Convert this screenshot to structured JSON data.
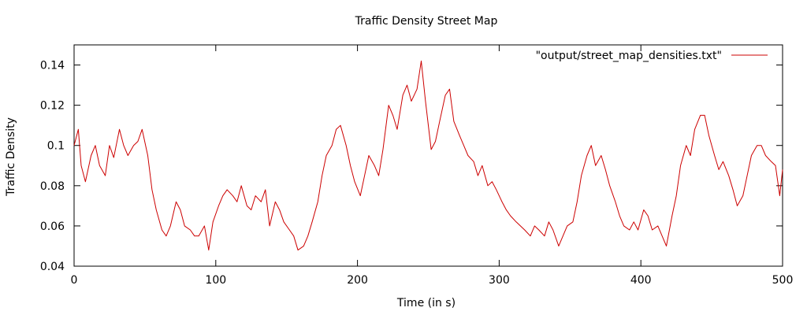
{
  "chart_data": {
    "type": "line",
    "title": "Traffic Density Street Map",
    "xlabel": "Time (in s)",
    "ylabel": "Traffic Density",
    "xlim": [
      0,
      500
    ],
    "ylim": [
      0.04,
      0.15
    ],
    "x_ticks": [
      0,
      100,
      200,
      300,
      400,
      500
    ],
    "y_ticks": [
      0.04,
      0.06,
      0.08,
      0.1,
      0.12,
      0.14
    ],
    "x_tick_labels": [
      "0",
      "100",
      "200",
      "300",
      "400",
      "500"
    ],
    "y_tick_labels": [
      "0.04",
      "0.06",
      "0.08",
      "0.1",
      "0.12",
      "0.14"
    ],
    "grid": false,
    "legend_position": "top-right",
    "series": [
      {
        "name": "\"output/street_map_densities.txt\"",
        "color": "#cc0000",
        "x": [
          0,
          3,
          5,
          8,
          12,
          15,
          18,
          22,
          25,
          28,
          32,
          35,
          38,
          42,
          45,
          48,
          52,
          55,
          58,
          62,
          65,
          68,
          72,
          75,
          78,
          82,
          85,
          88,
          92,
          95,
          98,
          102,
          105,
          108,
          112,
          115,
          118,
          122,
          125,
          128,
          132,
          135,
          138,
          142,
          145,
          148,
          152,
          155,
          158,
          162,
          165,
          168,
          172,
          175,
          178,
          182,
          185,
          188,
          192,
          195,
          198,
          202,
          205,
          208,
          212,
          215,
          218,
          222,
          225,
          228,
          232,
          235,
          238,
          242,
          245,
          248,
          252,
          255,
          258,
          262,
          265,
          268,
          272,
          275,
          278,
          282,
          285,
          288,
          292,
          295,
          298,
          302,
          305,
          308,
          312,
          315,
          318,
          322,
          325,
          328,
          332,
          335,
          338,
          342,
          345,
          348,
          352,
          355,
          358,
          362,
          365,
          368,
          372,
          375,
          378,
          382,
          385,
          388,
          392,
          395,
          398,
          402,
          405,
          408,
          412,
          415,
          418,
          422,
          425,
          428,
          432,
          435,
          438,
          442,
          445,
          448,
          452,
          455,
          458,
          462,
          465,
          468,
          472,
          475,
          478,
          482,
          485,
          488,
          492,
          495,
          498,
          500
        ],
        "y": [
          0.1,
          0.108,
          0.09,
          0.082,
          0.095,
          0.1,
          0.09,
          0.085,
          0.1,
          0.094,
          0.108,
          0.1,
          0.095,
          0.1,
          0.102,
          0.108,
          0.095,
          0.078,
          0.068,
          0.058,
          0.055,
          0.06,
          0.072,
          0.068,
          0.06,
          0.058,
          0.055,
          0.055,
          0.06,
          0.048,
          0.062,
          0.07,
          0.075,
          0.078,
          0.075,
          0.072,
          0.08,
          0.07,
          0.068,
          0.075,
          0.072,
          0.078,
          0.06,
          0.072,
          0.068,
          0.062,
          0.058,
          0.055,
          0.048,
          0.05,
          0.055,
          0.062,
          0.072,
          0.085,
          0.095,
          0.1,
          0.108,
          0.11,
          0.1,
          0.09,
          0.082,
          0.075,
          0.085,
          0.095,
          0.09,
          0.085,
          0.098,
          0.12,
          0.115,
          0.108,
          0.125,
          0.13,
          0.122,
          0.128,
          0.142,
          0.122,
          0.098,
          0.102,
          0.112,
          0.125,
          0.128,
          0.112,
          0.105,
          0.1,
          0.095,
          0.092,
          0.085,
          0.09,
          0.08,
          0.082,
          0.078,
          0.072,
          0.068,
          0.065,
          0.062,
          0.06,
          0.058,
          0.055,
          0.06,
          0.058,
          0.055,
          0.062,
          0.058,
          0.05,
          0.055,
          0.06,
          0.062,
          0.072,
          0.085,
          0.095,
          0.1,
          0.09,
          0.095,
          0.088,
          0.08,
          0.072,
          0.065,
          0.06,
          0.058,
          0.062,
          0.058,
          0.068,
          0.065,
          0.058,
          0.06,
          0.055,
          0.05,
          0.065,
          0.075,
          0.09,
          0.1,
          0.095,
          0.108,
          0.115,
          0.115,
          0.105,
          0.095,
          0.088,
          0.092,
          0.085,
          0.078,
          0.07,
          0.075,
          0.085,
          0.095,
          0.1,
          0.1,
          0.095,
          0.092,
          0.09,
          0.075,
          0.088
        ]
      }
    ]
  }
}
